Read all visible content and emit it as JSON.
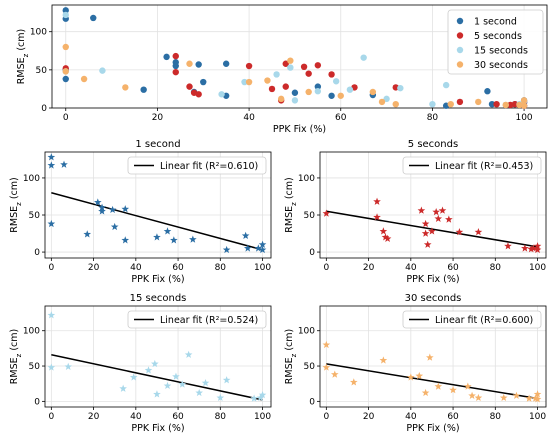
{
  "chart_data": [
    {
      "type": "scatter",
      "xlabel": "PPK Fix (%)",
      "ylabel": "RMSEz (cm)",
      "xlim": [
        -3,
        105
      ],
      "ylim": [
        0,
        135
      ],
      "xticks": [
        0,
        20,
        40,
        60,
        80,
        100
      ],
      "yticks": [
        0,
        50,
        100
      ],
      "legend": "top-right",
      "series": [
        {
          "name": "1 second",
          "color": "#2b6ea4",
          "points": [
            [
              0,
              128
            ],
            [
              0,
              117
            ],
            [
              0,
              50
            ],
            [
              0,
              38
            ],
            [
              6,
              118
            ],
            [
              17,
              24
            ],
            [
              22,
              67
            ],
            [
              24,
              55
            ],
            [
              24,
              60
            ],
            [
              28,
              21
            ],
            [
              29,
              57
            ],
            [
              30,
              34
            ],
            [
              35,
              58
            ],
            [
              35,
              16
            ],
            [
              50,
              20
            ],
            [
              55,
              28
            ],
            [
              58,
              16
            ],
            [
              67,
              17
            ],
            [
              83,
              3
            ],
            [
              92,
              22
            ],
            [
              93,
              5
            ],
            [
              98,
              5
            ],
            [
              100,
              10
            ],
            [
              100,
              3
            ],
            [
              100,
              7
            ]
          ]
        },
        {
          "name": "5 seconds",
          "color": "#cc2a2a",
          "points": [
            [
              0,
              52
            ],
            [
              24,
              68
            ],
            [
              24,
              47
            ],
            [
              27,
              28
            ],
            [
              28,
              20
            ],
            [
              29,
              18
            ],
            [
              40,
              55
            ],
            [
              45,
              25
            ],
            [
              47,
              10
            ],
            [
              48,
              58
            ],
            [
              48,
              28
            ],
            [
              52,
              54
            ],
            [
              53,
              45
            ],
            [
              55,
              56
            ],
            [
              58,
              44
            ],
            [
              63,
              27
            ],
            [
              72,
              27
            ],
            [
              86,
              8
            ],
            [
              94,
              5
            ],
            [
              97,
              4
            ],
            [
              98,
              5
            ],
            [
              100,
              3
            ],
            [
              100,
              8
            ]
          ]
        },
        {
          "name": "15 seconds",
          "color": "#a8d8ea",
          "points": [
            [
              0,
              122
            ],
            [
              0,
              48
            ],
            [
              8,
              49
            ],
            [
              34,
              18
            ],
            [
              39,
              34
            ],
            [
              46,
              44
            ],
            [
              49,
              53
            ],
            [
              50,
              10
            ],
            [
              55,
              22
            ],
            [
              59,
              35
            ],
            [
              62,
              24
            ],
            [
              65,
              66
            ],
            [
              70,
              12
            ],
            [
              73,
              26
            ],
            [
              80,
              5
            ],
            [
              83,
              30
            ],
            [
              96,
              4
            ],
            [
              99,
              5
            ],
            [
              100,
              9
            ]
          ]
        },
        {
          "name": "30 seconds",
          "color": "#f5b26b",
          "points": [
            [
              0,
              80
            ],
            [
              0,
              48
            ],
            [
              4,
              38
            ],
            [
              13,
              27
            ],
            [
              27,
              58
            ],
            [
              40,
              34
            ],
            [
              44,
              36
            ],
            [
              47,
              12
            ],
            [
              49,
              62
            ],
            [
              53,
              21
            ],
            [
              60,
              16
            ],
            [
              67,
              21
            ],
            [
              69,
              8
            ],
            [
              72,
              5
            ],
            [
              84,
              5
            ],
            [
              90,
              8
            ],
            [
              96,
              4
            ],
            [
              99,
              4
            ],
            [
              100,
              10
            ],
            [
              100,
              3
            ]
          ]
        }
      ]
    },
    {
      "type": "scatter",
      "title": "1 second",
      "xlabel": "PPK Fix (%)",
      "ylabel": "RMSEz (cm)",
      "xlim": [
        -3,
        104
      ],
      "ylim": [
        -8,
        135
      ],
      "xticks": [
        0,
        20,
        40,
        60,
        80,
        100
      ],
      "yticks": [
        0,
        50,
        100
      ],
      "legend": "top-right",
      "color": "#2b6ea4",
      "marker": "star",
      "fit": {
        "label": "Linear fit (R²=0.610)",
        "x": [
          0,
          100
        ],
        "y": [
          80,
          3
        ]
      },
      "points": [
        [
          0,
          128
        ],
        [
          0,
          117
        ],
        [
          0,
          38
        ],
        [
          6,
          118
        ],
        [
          17,
          24
        ],
        [
          22,
          67
        ],
        [
          24,
          55
        ],
        [
          24,
          60
        ],
        [
          29,
          57
        ],
        [
          30,
          34
        ],
        [
          35,
          58
        ],
        [
          35,
          16
        ],
        [
          50,
          20
        ],
        [
          55,
          28
        ],
        [
          58,
          16
        ],
        [
          67,
          17
        ],
        [
          83,
          3
        ],
        [
          92,
          22
        ],
        [
          93,
          5
        ],
        [
          98,
          5
        ],
        [
          100,
          10
        ],
        [
          100,
          3
        ]
      ]
    },
    {
      "type": "scatter",
      "title": "5 seconds",
      "xlabel": "PPK Fix (%)",
      "ylabel": "RMSEz (cm)",
      "xlim": [
        -3,
        104
      ],
      "ylim": [
        -8,
        135
      ],
      "xticks": [
        0,
        20,
        40,
        60,
        80,
        100
      ],
      "yticks": [
        0,
        50,
        100
      ],
      "legend": "top-right",
      "color": "#cc2a2a",
      "marker": "star",
      "fit": {
        "label": "Linear fit (R²=0.453)",
        "x": [
          0,
          100
        ],
        "y": [
          55,
          7
        ]
      },
      "points": [
        [
          0,
          52
        ],
        [
          24,
          68
        ],
        [
          24,
          47
        ],
        [
          27,
          28
        ],
        [
          28,
          20
        ],
        [
          29,
          18
        ],
        [
          45,
          56
        ],
        [
          47,
          38
        ],
        [
          47,
          25
        ],
        [
          48,
          10
        ],
        [
          50,
          28
        ],
        [
          52,
          54
        ],
        [
          53,
          45
        ],
        [
          55,
          56
        ],
        [
          58,
          44
        ],
        [
          63,
          27
        ],
        [
          72,
          27
        ],
        [
          86,
          8
        ],
        [
          94,
          5
        ],
        [
          97,
          4
        ],
        [
          98,
          5
        ],
        [
          100,
          3
        ],
        [
          100,
          8
        ]
      ]
    },
    {
      "type": "scatter",
      "title": "15 seconds",
      "xlabel": "PPK Fix (%)",
      "ylabel": "RMSEz (cm)",
      "xlim": [
        -3,
        104
      ],
      "ylim": [
        -8,
        135
      ],
      "xticks": [
        0,
        20,
        40,
        60,
        80,
        100
      ],
      "yticks": [
        0,
        50,
        100
      ],
      "legend": "top-right",
      "color": "#a8d8ea",
      "marker": "star",
      "fit": {
        "label": "Linear fit (R²=0.524)",
        "x": [
          0,
          100
        ],
        "y": [
          66,
          2
        ]
      },
      "points": [
        [
          0,
          122
        ],
        [
          0,
          48
        ],
        [
          8,
          49
        ],
        [
          34,
          18
        ],
        [
          39,
          34
        ],
        [
          46,
          44
        ],
        [
          49,
          53
        ],
        [
          50,
          10
        ],
        [
          55,
          22
        ],
        [
          59,
          35
        ],
        [
          62,
          24
        ],
        [
          65,
          66
        ],
        [
          70,
          12
        ],
        [
          73,
          26
        ],
        [
          80,
          5
        ],
        [
          83,
          30
        ],
        [
          96,
          4
        ],
        [
          99,
          5
        ],
        [
          100,
          9
        ]
      ]
    },
    {
      "type": "scatter",
      "title": "30 seconds",
      "xlabel": "PPK Fix (%)",
      "ylabel": "RMSEz (cm)",
      "xlim": [
        -3,
        104
      ],
      "ylim": [
        -8,
        135
      ],
      "xticks": [
        0,
        20,
        40,
        60,
        80,
        100
      ],
      "yticks": [
        0,
        50,
        100
      ],
      "legend": "top-right",
      "color": "#f5b26b",
      "marker": "star",
      "fit": {
        "label": "Linear fit (R²=0.600)",
        "x": [
          0,
          100
        ],
        "y": [
          53,
          4
        ]
      },
      "points": [
        [
          0,
          80
        ],
        [
          0,
          48
        ],
        [
          4,
          38
        ],
        [
          13,
          27
        ],
        [
          27,
          58
        ],
        [
          40,
          34
        ],
        [
          44,
          36
        ],
        [
          47,
          12
        ],
        [
          49,
          62
        ],
        [
          53,
          21
        ],
        [
          60,
          16
        ],
        [
          67,
          21
        ],
        [
          69,
          8
        ],
        [
          72,
          5
        ],
        [
          84,
          5
        ],
        [
          90,
          8
        ],
        [
          96,
          4
        ],
        [
          99,
          4
        ],
        [
          100,
          10
        ],
        [
          100,
          3
        ]
      ]
    }
  ]
}
